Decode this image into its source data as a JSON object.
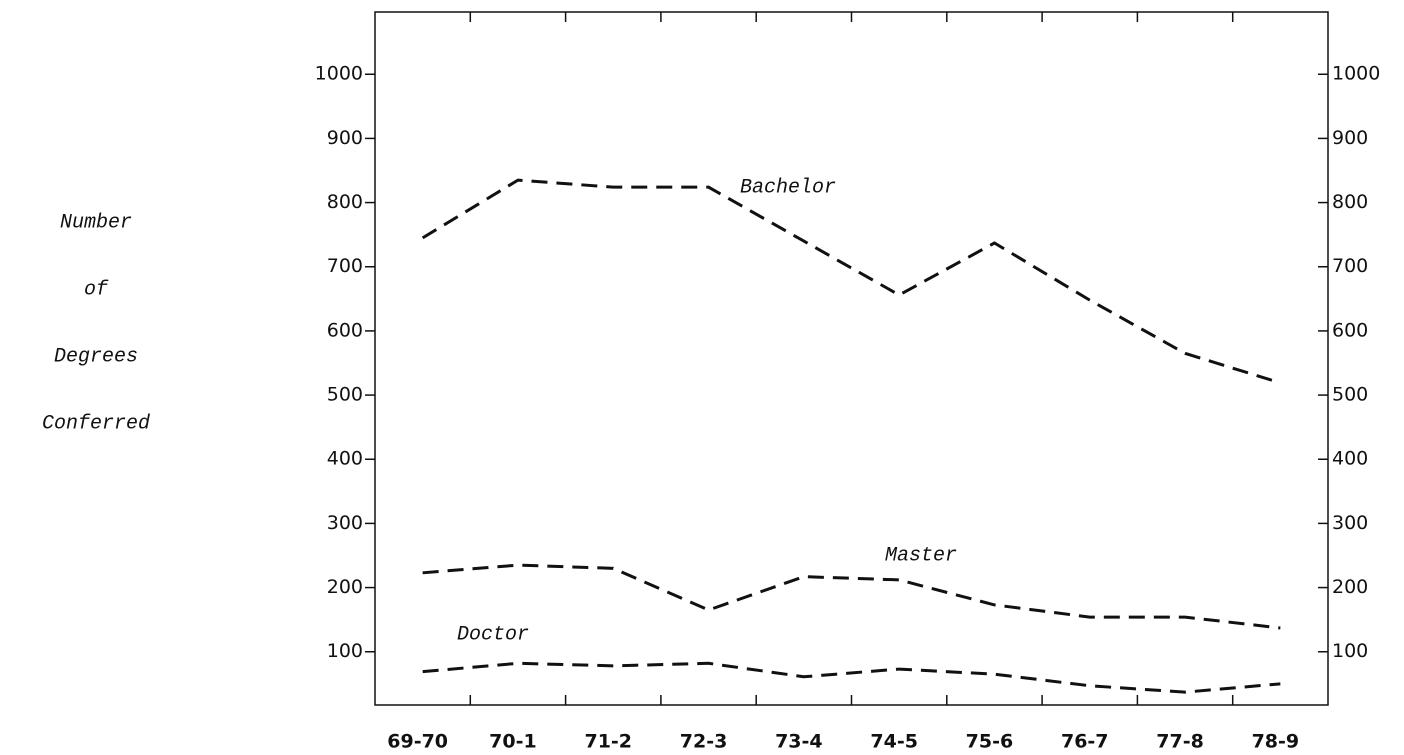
{
  "chart_data": {
    "type": "line",
    "ylabel": [
      "Number",
      "of",
      "Degrees",
      "Conferred"
    ],
    "categories": [
      "69-70",
      "70-1",
      "71-2",
      "72-3",
      "73-4",
      "74-5",
      "75-6",
      "76-7",
      "77-8",
      "78-9"
    ],
    "series": [
      {
        "name": "Bachelor",
        "color": "#111111",
        "values": [
          745,
          835,
          824,
          824,
          740,
          656,
          737,
          648,
          565,
          519
        ]
      },
      {
        "name": "Master",
        "color": "#111111",
        "values": [
          223,
          235,
          230,
          165,
          217,
          212,
          173,
          154,
          154,
          137
        ]
      },
      {
        "name": "Doctor",
        "color": "#111111",
        "values": [
          69,
          82,
          78,
          82,
          61,
          73,
          65,
          47,
          37,
          50
        ]
      }
    ],
    "ylim": [
      17,
      1097
    ],
    "yticks": [
      100,
      200,
      300,
      400,
      500,
      600,
      700,
      800,
      900,
      1000
    ],
    "y2lim": [
      17,
      1097
    ],
    "y2ticks": [
      100,
      200,
      300,
      400,
      500,
      600,
      700,
      800,
      900,
      1000
    ],
    "legend": "inline",
    "grid": false
  }
}
